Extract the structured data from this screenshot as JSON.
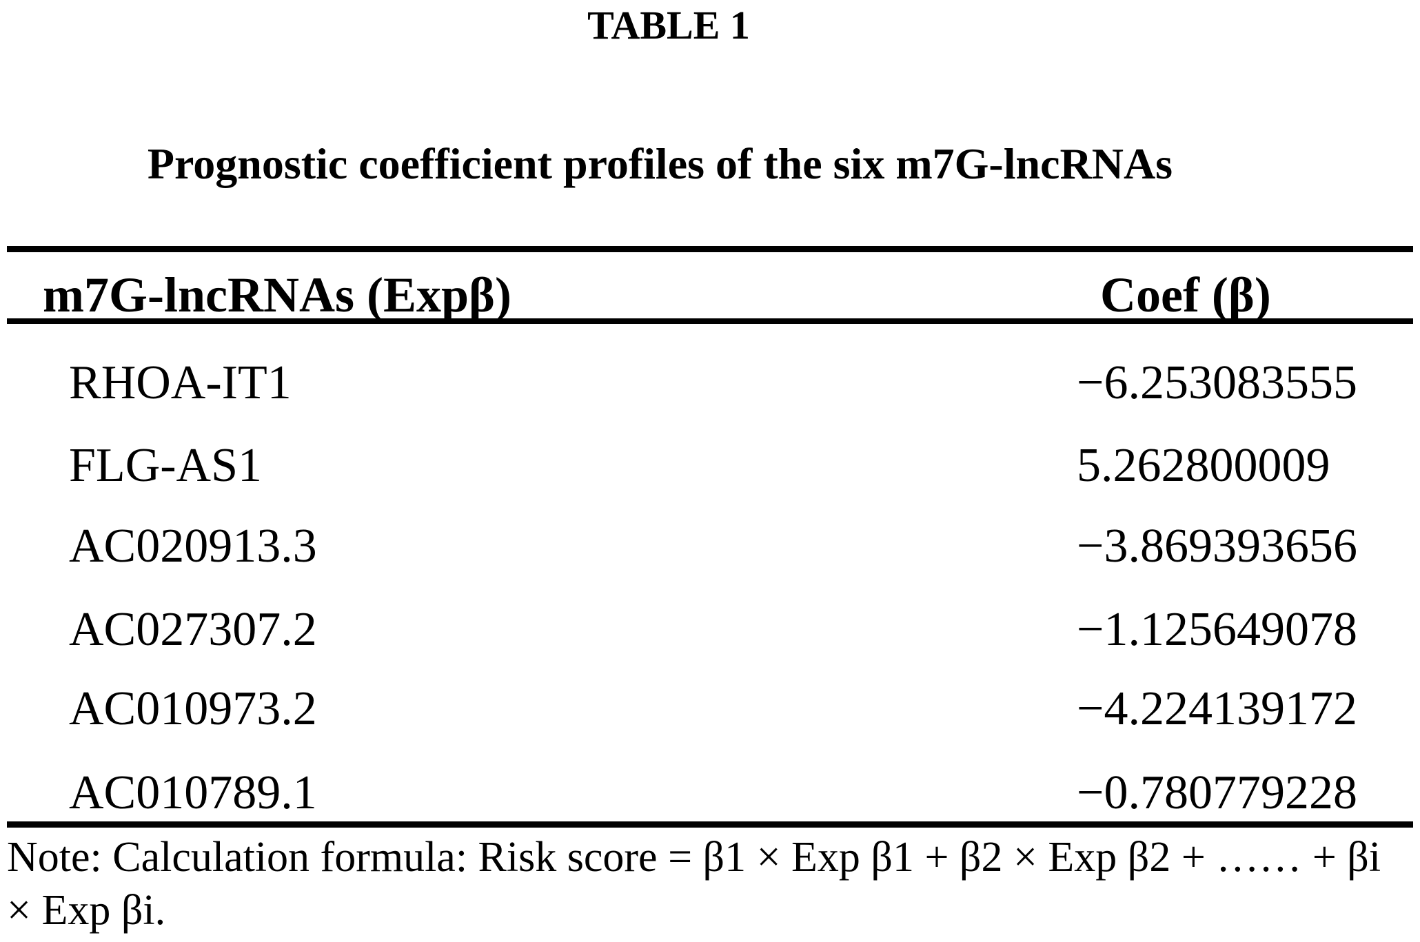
{
  "table": {
    "label": "TABLE 1",
    "title": "Prognostic coefficient profiles of the six m7G-lncRNAs",
    "columns": [
      "m7G-lncRNAs (Expβ)",
      "Coef (β)"
    ],
    "rows": [
      {
        "name": "RHOA-IT1",
        "coef": "−6.253083555"
      },
      {
        "name": "FLG-AS1",
        "coef": "5.262800009"
      },
      {
        "name": "AC020913.3",
        "coef": "−3.869393656"
      },
      {
        "name": "AC027307.2",
        "coef": "−1.125649078"
      },
      {
        "name": "AC010973.2",
        "coef": "−4.224139172"
      },
      {
        "name": "AC010789.1",
        "coef": "−0.780779228"
      }
    ],
    "note_line1": "Note: Calculation formula: Risk score = β1 × Exp β1 + β2 × Exp β2 + …… + βi",
    "note_line2": "× Exp βi."
  },
  "colors": {
    "background": "#ffffff",
    "text": "#000000",
    "rule": "#000000"
  }
}
